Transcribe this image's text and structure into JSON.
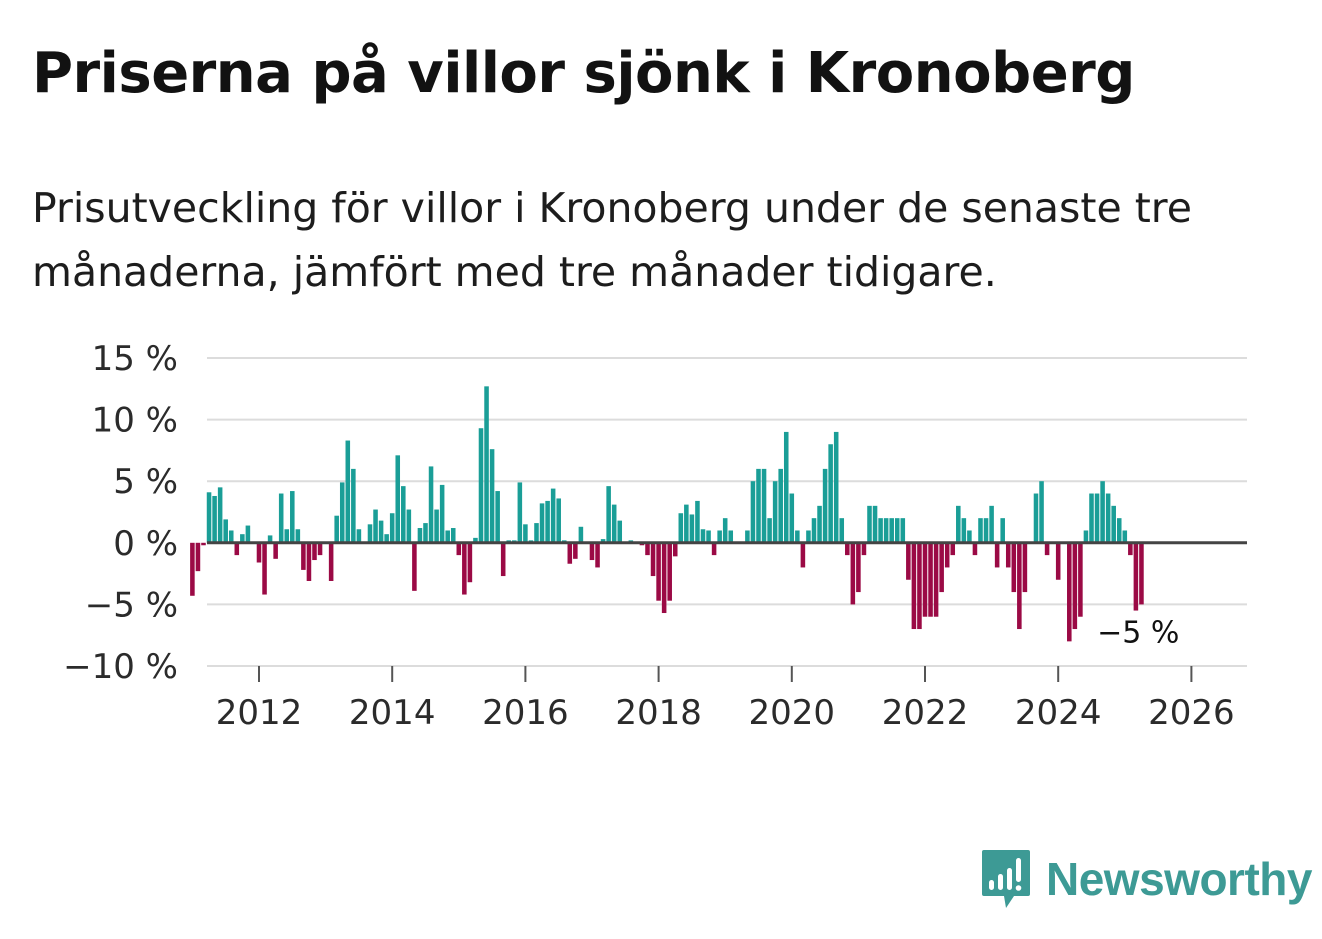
{
  "title": "Priserna på villor sjönk i Kronoberg",
  "subtitle": "Prisutveckling för villor i Kronoberg under de senaste tre månaderna, jämfört med tre månader tidigare.",
  "logo": {
    "text": "Newsworthy",
    "icon": "newsworthy-logo-icon"
  },
  "colors": {
    "positive": "#1a9e97",
    "negative": "#9b0a45",
    "grid": "#dcdcdc",
    "zero_line": "#444444",
    "text": "#2b2b2b"
  },
  "chart_data": {
    "type": "bar",
    "title": "Priserna på villor sjönk i Kronoberg",
    "ylabel": "",
    "xlabel": "",
    "ylim": [
      -10,
      15
    ],
    "y_ticks": [
      15,
      10,
      5,
      0,
      -5,
      -10
    ],
    "y_tick_labels": [
      "15 %",
      "10 %",
      "5 %",
      "0 %",
      "−5 %",
      "−10 %"
    ],
    "x_ticks": [
      2012,
      2014,
      2016,
      2018,
      2020,
      2022,
      2024,
      2026
    ],
    "x_tick_labels": [
      "2012",
      "2014",
      "2016",
      "2018",
      "2020",
      "2022",
      "2024",
      "2026"
    ],
    "start": "2011-01",
    "frequency": "monthly",
    "values": [
      -4.3,
      -2.3,
      -0.2,
      4.1,
      3.8,
      4.5,
      1.9,
      1.0,
      -1.0,
      0.7,
      1.4,
      0.0,
      -1.6,
      -4.2,
      0.6,
      -1.3,
      4.0,
      1.1,
      4.2,
      1.1,
      -2.2,
      -3.1,
      -1.4,
      -1.0,
      0.0,
      -3.1,
      2.2,
      4.9,
      8.3,
      6.0,
      1.1,
      0.0,
      1.5,
      2.7,
      1.8,
      0.7,
      2.4,
      7.1,
      4.6,
      2.7,
      -3.9,
      1.2,
      1.6,
      6.2,
      2.7,
      4.7,
      1.0,
      1.2,
      -1.0,
      -4.2,
      -3.2,
      0.4,
      9.3,
      12.7,
      7.6,
      4.2,
      -2.7,
      0.2,
      0.2,
      4.9,
      1.5,
      0.2,
      1.6,
      3.2,
      3.4,
      4.4,
      3.6,
      0.2,
      -1.7,
      -1.3,
      1.3,
      0.1,
      -1.4,
      -2.0,
      0.3,
      4.6,
      3.1,
      1.8,
      0.1,
      0.2,
      0.1,
      -0.2,
      -1.0,
      -2.7,
      -4.7,
      -5.7,
      -4.7,
      -1.1,
      2.4,
      3.1,
      2.3,
      3.4,
      1.1,
      1.0,
      -1.0,
      1.0,
      2.0,
      1.0,
      0.0,
      0.0,
      1.0,
      5.0,
      6.0,
      6.0,
      2.0,
      5.0,
      6.0,
      9.0,
      4.0,
      1.0,
      -2.0,
      1.0,
      2.0,
      3.0,
      6.0,
      8.0,
      9.0,
      2.0,
      -1.0,
      -5.0,
      -4.0,
      -1.0,
      3.0,
      3.0,
      2.0,
      2.0,
      2.0,
      2.0,
      2.0,
      -3.0,
      -7.0,
      -7.0,
      -6.0,
      -6.0,
      -6.0,
      -4.0,
      -2.0,
      -1.0,
      3.0,
      2.0,
      1.0,
      -1.0,
      2.0,
      2.0,
      3.0,
      -2.0,
      2.0,
      -2.0,
      -4.0,
      -7.0,
      -4.0,
      0.0,
      4.0,
      5.0,
      -1.0,
      0.0,
      -3.0,
      0.0,
      -8.0,
      -7.0,
      -6.0,
      1.0,
      4.0,
      4.0,
      5.0,
      4.0,
      3.0,
      2.0,
      1.0,
      -1.0,
      -5.5,
      -5.0
    ],
    "annotation": {
      "label": "−5 %",
      "value": -5,
      "position": "last-bar"
    }
  }
}
